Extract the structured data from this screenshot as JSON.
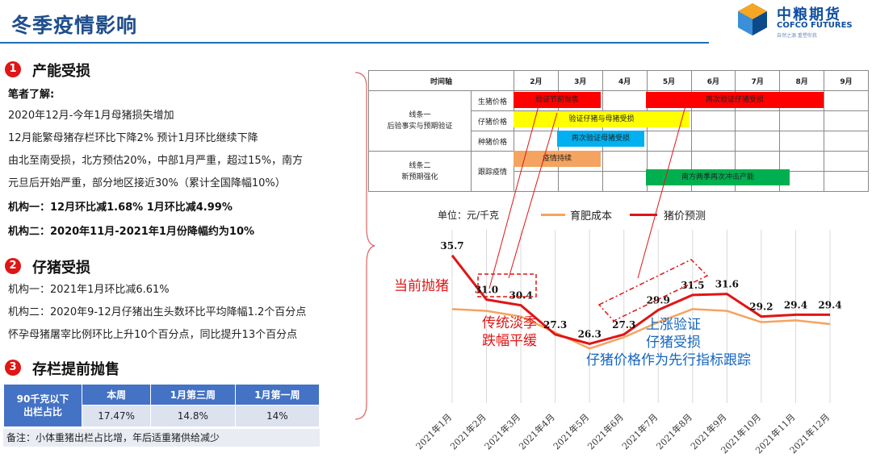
{
  "header": {
    "title": "冬季疫情影响",
    "logo_cn": "中粮期货",
    "logo_en": "COFCO FUTURES",
    "logo_sub": "自然之源 重塑你我",
    "accent": "#1f4e8c",
    "line_color": "#1f6fb5"
  },
  "section1": {
    "num": "1",
    "title": "产能受损",
    "lines": [
      "笔者了解:",
      "2020年12月-今年1月母猪损失增加",
      "12月能繁母猪存栏环比下降2% 预计1月环比继续下降",
      "由北至南受损，北方预估20%，中部1月严重，超过15%，南方",
      "元旦后开始严重，部分地区接近30%（累计全国降幅10%）",
      "机构一：12月环比减1.68% 1月环比减4.99%",
      "机构二：2020年11月-2021年1月份降幅约为10%"
    ]
  },
  "section2": {
    "num": "2",
    "title": "仔猪受损",
    "lines": [
      "机构一：2021年1月环比减6.61%",
      "机构二：2020年9-12月仔猪出生头数环比平均降幅1.2个百分点",
      "怀孕母猪屠宰比例环比上升10个百分点，同比提升13个百分点"
    ]
  },
  "section3": {
    "num": "3",
    "title": "存栏提前抛售",
    "table": {
      "row_header": "90千克以下\n出栏占比",
      "columns": [
        "本周",
        "1月第三周",
        "1月第一周"
      ],
      "values": [
        "17.47%",
        "14.8%",
        "14%"
      ]
    },
    "note": "备注：小体重猪出栏占比增，年后适重猪供给减少"
  },
  "timeline": {
    "axis_label": "时间轴",
    "months": [
      "2月",
      "3月",
      "4月",
      "5月",
      "6月",
      "7月",
      "8月",
      "9月"
    ],
    "group1": "线条一\n后验事实与预期验证",
    "group2": "线条二\n新预期强化",
    "rows": [
      "生猪价格",
      "仔猪价格",
      "种猪价格",
      "跟踪疫情"
    ],
    "bars": {
      "b1": "验证节前抛售",
      "b2": "再次验证仔猪受损",
      "b3": "验证仔猪与母猪受损",
      "b4": "再次验证母猪受损",
      "b5": "疫情持续",
      "b6": "南方两季再次冲击产能"
    },
    "colors": {
      "red": "#ff0000",
      "yellow": "#ffff00",
      "blue": "#00b0f0",
      "orange": "#f4a460",
      "green": "#00b050"
    }
  },
  "chart_data": {
    "type": "line",
    "unit_label": "单位：元/千克",
    "categories": [
      "2021年1月",
      "2021年2月",
      "2021年3月",
      "2021年4月",
      "2021年5月",
      "2021年6月",
      "2021年7月",
      "2021年8月",
      "2021年9月",
      "2021年10月",
      "2021年11月",
      "2021年12月"
    ],
    "series": [
      {
        "name": "育肥成本",
        "color": "#f4a460",
        "values": [
          30.0,
          29.8,
          29.2,
          27.5,
          25.8,
          27.0,
          28.6,
          30.0,
          29.8,
          28.6,
          28.8,
          28.4
        ]
      },
      {
        "name": "猪价预测",
        "color": "#e01515",
        "values": [
          35.7,
          31.0,
          30.4,
          27.3,
          26.3,
          27.3,
          29.9,
          31.5,
          31.6,
          29.2,
          29.4,
          29.4
        ]
      }
    ],
    "data_labels": [
      "35.7",
      "31.0",
      "30.4",
      "27.3",
      "26.3",
      "27.3",
      "29.9",
      "31.5",
      "31.6",
      "29.2",
      "29.4",
      "29.4"
    ],
    "ylim": [
      20,
      38
    ],
    "grid": "vertical",
    "legend": "top"
  },
  "annotations": {
    "a1": "当前抛猪",
    "a2": "传统淡季",
    "a3": "跌幅平缓",
    "a4": "上涨验证",
    "a5": "仔猪受损",
    "a6": "仔猪价格作为先行指标跟踪"
  }
}
